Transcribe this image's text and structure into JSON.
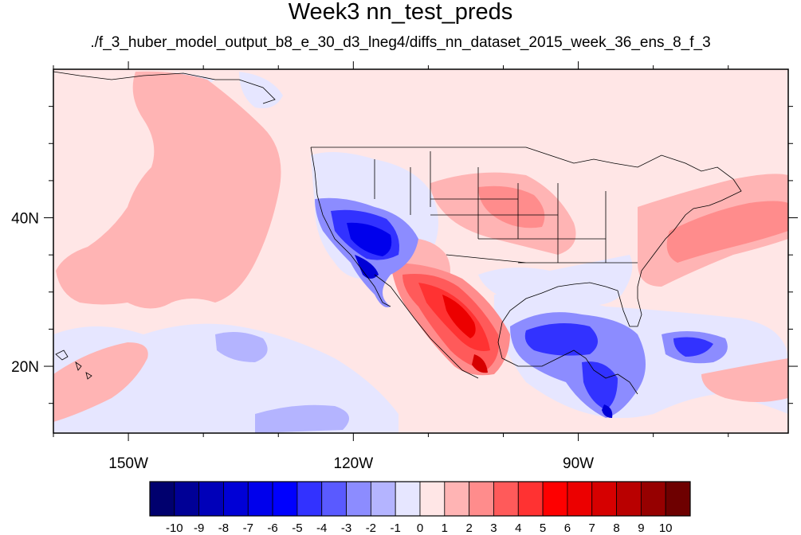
{
  "title": "Week3 nn_test_preds",
  "subtitle": "./f_3_huber_model_output_b8_e_30_d3_lneg4/diffs_nn_dataset_2015_week_36_ens_8_f_3",
  "map": {
    "lon_range": [
      -160,
      -62
    ],
    "lat_range": [
      11,
      60
    ],
    "x_axis": {
      "ticks": [
        -150,
        -120,
        -90
      ],
      "labels": [
        "150W",
        "120W",
        "90W"
      ]
    },
    "y_axis": {
      "ticks": [
        20,
        40
      ],
      "labels": [
        "20N",
        "40N"
      ]
    }
  },
  "colorbar": {
    "levels": [
      "-10",
      "-9",
      "-8",
      "-7",
      "-6",
      "-5",
      "-4",
      "-3",
      "-2",
      "-1",
      "0",
      "1",
      "2",
      "3",
      "4",
      "5",
      "6",
      "7",
      "8",
      "9",
      "10"
    ],
    "colors": [
      "#00006e",
      "#000096",
      "#0000b9",
      "#0000d6",
      "#0000ec",
      "#0000fe",
      "#3232ff",
      "#5a5aff",
      "#8c8cff",
      "#b4b4ff",
      "#e6e6ff",
      "#ffe6e6",
      "#ffb4b4",
      "#ff8c8c",
      "#ff5a5a",
      "#ff3232",
      "#fe0000",
      "#ec0000",
      "#d60000",
      "#b90000",
      "#960000",
      "#6e0000"
    ]
  }
}
